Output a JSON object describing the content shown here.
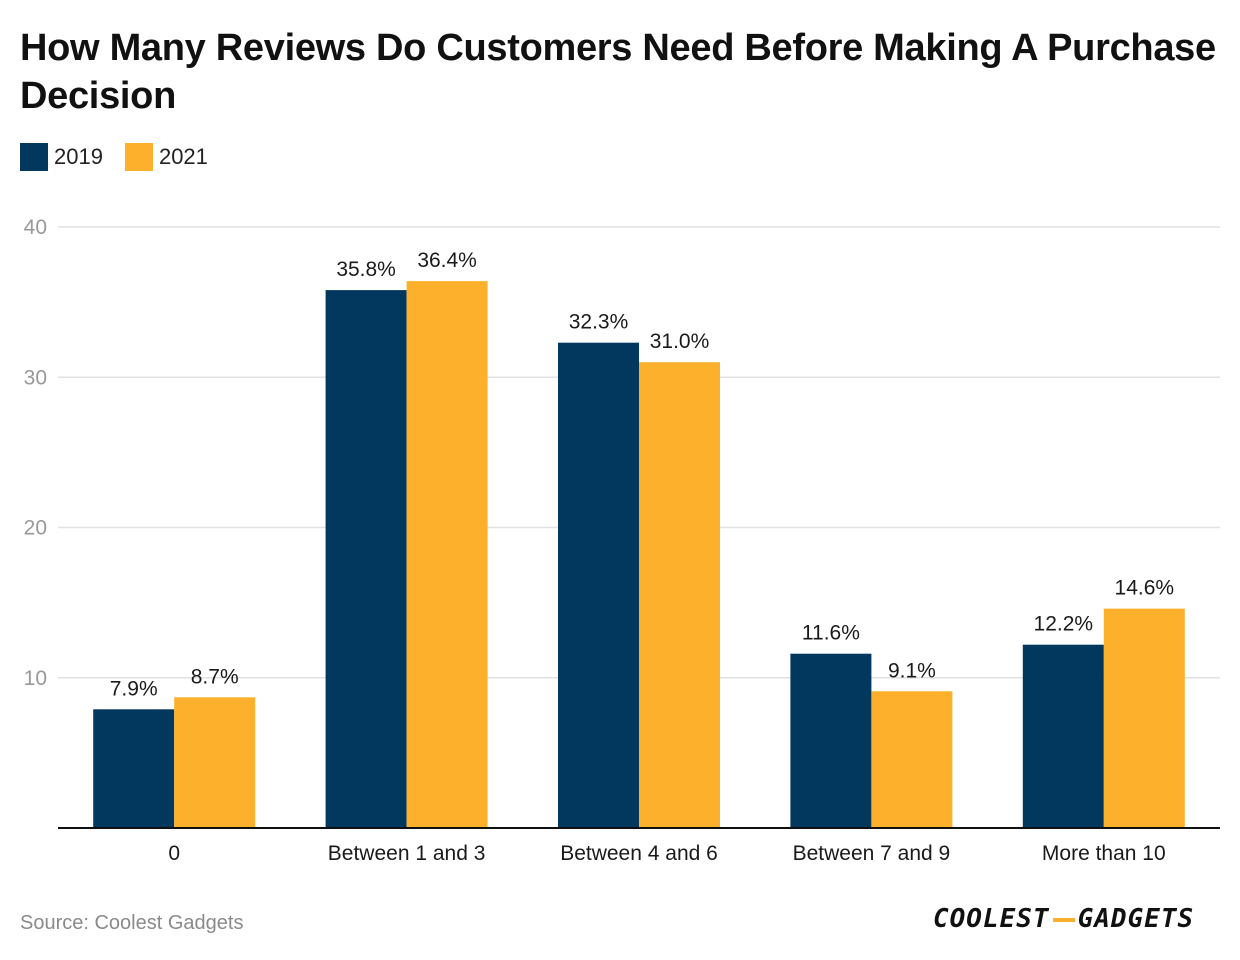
{
  "title": "How Many Reviews Do Customers Need Before Making A Purchase Decision",
  "source": "Source: Coolest Gadgets",
  "logo": {
    "left": "COOLEST",
    "right": "GADGETS"
  },
  "colors": {
    "series_2019": "#02375e",
    "series_2021": "#fcb02b",
    "grid": "#e1e1e1",
    "axis": "#111111",
    "tick": "#999999"
  },
  "chart_data": {
    "type": "bar",
    "title": "How Many Reviews Do Customers Need Before Making A Purchase Decision",
    "categories": [
      "0",
      "Between 1 and 3",
      "Between 4 and 6",
      "Between 7 and 9",
      "More than 10"
    ],
    "series": [
      {
        "name": "2019",
        "values": [
          7.9,
          35.8,
          32.3,
          11.6,
          12.2
        ],
        "labels": [
          "7.9%",
          "35.8%",
          "32.3%",
          "11.6%",
          "12.2%"
        ]
      },
      {
        "name": "2021",
        "values": [
          8.7,
          36.4,
          31.0,
          9.1,
          14.6
        ],
        "labels": [
          "8.7%",
          "36.4%",
          "31.0%",
          "9.1%",
          "14.6%"
        ]
      }
    ],
    "yticks": [
      10,
      20,
      30,
      40
    ],
    "ylim": [
      0,
      40
    ],
    "xlabel": "",
    "ylabel": "",
    "legend_position": "top-left",
    "grid": true
  }
}
